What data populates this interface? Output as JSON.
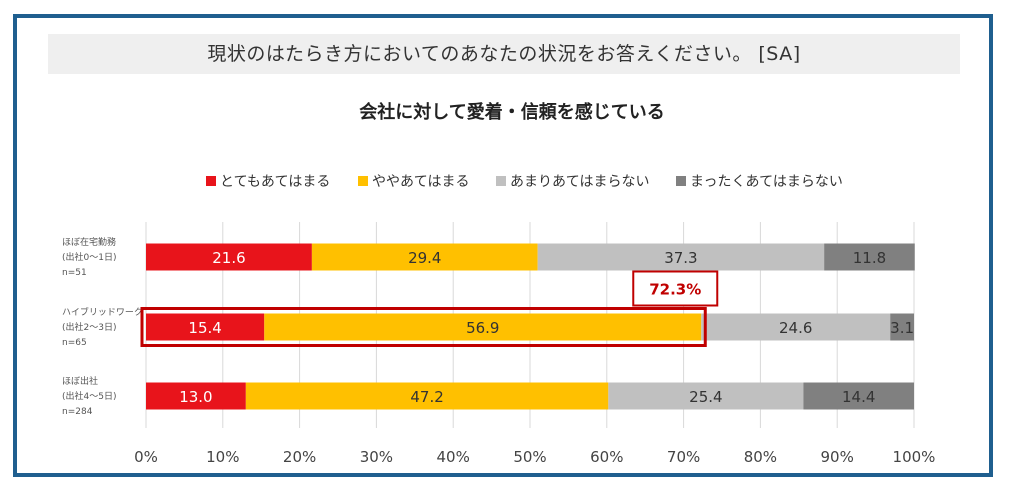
{
  "header": {
    "question": "現状のはたらき方においてのあなたの状況をお答えください。 [SA]"
  },
  "chart_data": {
    "type": "bar",
    "orientation": "horizontal",
    "stacked": true,
    "title": "会社に対して愛着・信頼を感じている",
    "legend_position": "top",
    "xlim": [
      0,
      100
    ],
    "xticks": [
      "0%",
      "10%",
      "20%",
      "30%",
      "40%",
      "50%",
      "60%",
      "70%",
      "80%",
      "90%",
      "100%"
    ],
    "grid": true,
    "categories": [
      {
        "lines": [
          "ほぼ在宅勤務",
          "(出社0～1日)",
          "n=51"
        ]
      },
      {
        "lines": [
          "ハイブリッドワーク",
          "(出社2～3日)",
          "n=65"
        ]
      },
      {
        "lines": [
          "ほぼ出社",
          "(出社4～5日)",
          "n=284"
        ]
      }
    ],
    "series": [
      {
        "name": "とてもあてはまる",
        "color": "#e8141b",
        "label_color": "#ffffff",
        "values": [
          21.6,
          15.4,
          13.0
        ]
      },
      {
        "name": "ややあてはまる",
        "color": "#ffc000",
        "label_color": "#333333",
        "values": [
          29.4,
          56.9,
          47.2
        ]
      },
      {
        "name": "あまりあてはまらない",
        "color": "#c0c0c0",
        "label_color": "#333333",
        "values": [
          37.3,
          24.6,
          25.4
        ]
      },
      {
        "name": "まったくあてはまらない",
        "color": "#808080",
        "label_color": "#333333",
        "values": [
          11.8,
          3.1,
          14.4
        ]
      }
    ],
    "value_labels": [
      [
        "21.6",
        "29.4",
        "37.3",
        "11.8"
      ],
      [
        "15.4",
        "56.9",
        "24.6",
        "3.1"
      ],
      [
        "13.0",
        "47.2",
        "25.4",
        "14.4"
      ]
    ],
    "annotation": {
      "text": "72.3%",
      "color": "#c00000",
      "category_index": 1,
      "value": 72.3
    }
  }
}
